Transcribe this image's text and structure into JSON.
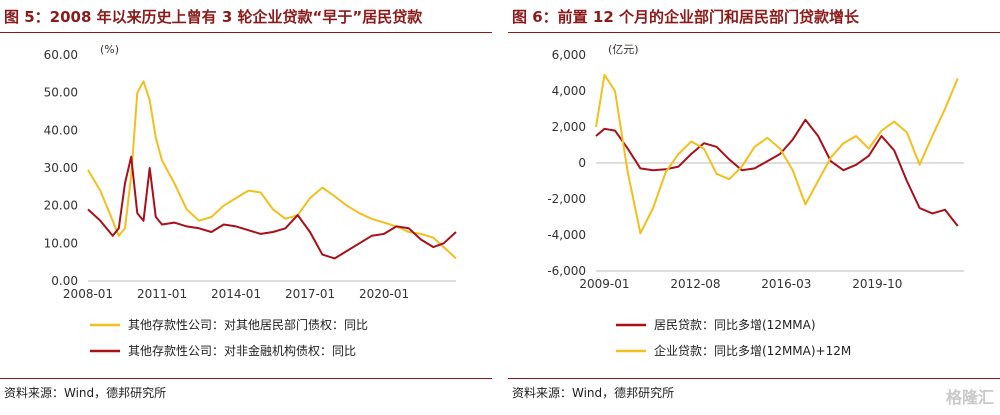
{
  "figures": [
    {
      "title": "图 5：2008 年以来历史上曾有 3 轮企业贷款“早于”居民贷款",
      "source": "资料来源：Wind，德邦研究所"
    },
    {
      "title": "图 6：前置 12 个月的企业部门和居民部门贷款增长",
      "source": "资料来源：Wind，德邦研究所"
    }
  ],
  "watermark": "格隆汇",
  "chart_data": [
    {
      "type": "line",
      "unit_label": "(%)",
      "x_tick_labels": [
        "2008-01",
        "2011-01",
        "2014-01",
        "2017-01",
        "2020-01"
      ],
      "y_tick_labels": [
        "0.00",
        "10.00",
        "20.00",
        "30.00",
        "40.00",
        "50.00",
        "60.00"
      ],
      "ylim": [
        0,
        60
      ],
      "xlim": [
        "2008-01",
        "2022-12"
      ],
      "grid": false,
      "legend_position": "bottom",
      "colors": {
        "series_1": "#F2C01E",
        "series_2": "#A8101A"
      },
      "series": [
        {
          "name": "其他存款性公司：对其他居民部门债权：同比",
          "x": [
            "2008-01",
            "2008-07",
            "2009-01",
            "2009-04",
            "2009-07",
            "2009-10",
            "2010-01",
            "2010-04",
            "2010-07",
            "2010-10",
            "2011-01",
            "2011-07",
            "2012-01",
            "2012-07",
            "2013-01",
            "2013-07",
            "2014-01",
            "2014-07",
            "2015-01",
            "2015-07",
            "2016-01",
            "2016-07",
            "2017-01",
            "2017-07",
            "2018-01",
            "2018-07",
            "2019-01",
            "2019-07",
            "2020-01",
            "2020-07",
            "2021-01",
            "2021-07",
            "2022-01",
            "2022-06",
            "2022-12"
          ],
          "values": [
            29.5,
            24.0,
            16.0,
            12.0,
            14.0,
            28.0,
            50.0,
            53.0,
            48.0,
            38.0,
            32.0,
            26.0,
            19.0,
            16.0,
            17.0,
            20.0,
            22.0,
            24.0,
            23.5,
            19.0,
            16.5,
            17.5,
            22.0,
            24.8,
            22.5,
            20.0,
            18.0,
            16.5,
            15.5,
            14.5,
            13.0,
            12.5,
            11.5,
            9.0,
            6.0
          ]
        },
        {
          "name": "其他存款性公司：对非金融机构债权：同比",
          "x": [
            "2008-01",
            "2008-07",
            "2009-01",
            "2009-04",
            "2009-07",
            "2009-10",
            "2010-01",
            "2010-04",
            "2010-07",
            "2010-10",
            "2011-01",
            "2011-07",
            "2012-01",
            "2012-07",
            "2013-01",
            "2013-07",
            "2014-01",
            "2014-07",
            "2015-01",
            "2015-07",
            "2016-01",
            "2016-07",
            "2017-01",
            "2017-07",
            "2018-01",
            "2018-07",
            "2019-01",
            "2019-07",
            "2020-01",
            "2020-07",
            "2021-01",
            "2021-07",
            "2022-01",
            "2022-06",
            "2022-12"
          ],
          "values": [
            19.0,
            16.0,
            12.0,
            14.0,
            26.0,
            33.0,
            18.0,
            16.0,
            30.0,
            17.0,
            15.0,
            15.5,
            14.5,
            14.0,
            13.0,
            15.0,
            14.5,
            13.5,
            12.5,
            13.0,
            14.0,
            17.5,
            13.0,
            7.0,
            6.0,
            8.0,
            10.0,
            12.0,
            12.5,
            14.5,
            14.0,
            11.0,
            9.0,
            10.0,
            13.0
          ]
        }
      ]
    },
    {
      "type": "line",
      "unit_label": "(亿元)",
      "x_tick_labels": [
        "2009-01",
        "2012-08",
        "2016-03",
        "2019-10"
      ],
      "y_tick_labels": [
        "-6,000",
        "-4,000",
        "-2,000",
        "0",
        "2,000",
        "4,000",
        "6,000"
      ],
      "ylim": [
        -6000,
        6000
      ],
      "xlim": [
        "2008-09",
        "2023-03"
      ],
      "grid": false,
      "zero_line": true,
      "legend_position": "bottom",
      "colors": {
        "series_1": "#A8101A",
        "series_2": "#F2C01E"
      },
      "series": [
        {
          "name": "居民贷款：同比多增(12MMA)",
          "x": [
            "2008-09",
            "2009-01",
            "2009-06",
            "2009-12",
            "2010-06",
            "2010-12",
            "2011-06",
            "2011-12",
            "2012-06",
            "2012-12",
            "2013-06",
            "2013-12",
            "2014-06",
            "2014-12",
            "2015-06",
            "2015-12",
            "2016-06",
            "2016-12",
            "2017-06",
            "2017-12",
            "2018-06",
            "2018-12",
            "2019-06",
            "2019-12",
            "2020-06",
            "2020-12",
            "2021-06",
            "2021-12",
            "2022-06",
            "2022-12"
          ],
          "values": [
            1500,
            1900,
            1800,
            800,
            -300,
            -400,
            -350,
            -200,
            500,
            1100,
            900,
            200,
            -400,
            -300,
            100,
            500,
            1300,
            2400,
            1500,
            100,
            -400,
            -100,
            400,
            1500,
            700,
            -1000,
            -2500,
            -2800,
            -2600,
            -3500
          ]
        },
        {
          "name": "企业贷款：同比多增(12MMA)+12M",
          "x": [
            "2008-09",
            "2009-01",
            "2009-06",
            "2009-12",
            "2010-06",
            "2010-12",
            "2011-06",
            "2011-12",
            "2012-06",
            "2012-12",
            "2013-06",
            "2013-12",
            "2014-06",
            "2014-12",
            "2015-06",
            "2015-12",
            "2016-06",
            "2016-12",
            "2017-06",
            "2017-12",
            "2018-06",
            "2018-12",
            "2019-06",
            "2019-12",
            "2020-06",
            "2020-12",
            "2021-06",
            "2021-12",
            "2022-06",
            "2022-12"
          ],
          "values": [
            2000,
            4900,
            4000,
            -500,
            -3900,
            -2500,
            -500,
            500,
            1200,
            800,
            -600,
            -900,
            -200,
            900,
            1400,
            800,
            -400,
            -2300,
            -1000,
            300,
            1100,
            1500,
            800,
            1800,
            2300,
            1700,
            -100,
            1500,
            3000,
            4700
          ]
        }
      ]
    }
  ]
}
